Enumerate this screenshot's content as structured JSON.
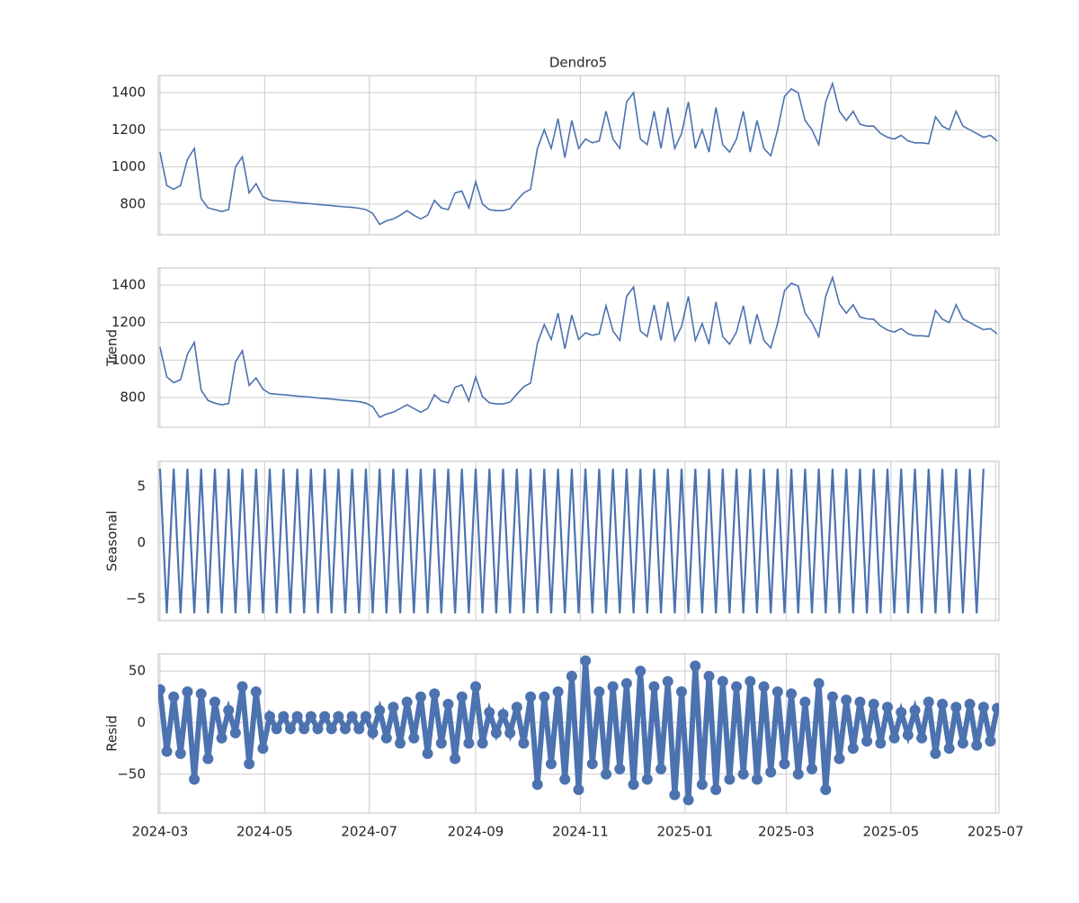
{
  "chart_data": {
    "type": "decomposition",
    "title": "Dendro5",
    "x": [
      "2024-03-01",
      "2024-03-05",
      "2024-03-09",
      "2024-03-13",
      "2024-03-17",
      "2024-03-21",
      "2024-03-25",
      "2024-03-29",
      "2024-04-02",
      "2024-04-06",
      "2024-04-10",
      "2024-04-14",
      "2024-04-18",
      "2024-04-22",
      "2024-04-26",
      "2024-04-30",
      "2024-05-04",
      "2024-05-08",
      "2024-05-12",
      "2024-05-16",
      "2024-05-20",
      "2024-05-24",
      "2024-05-28",
      "2024-06-01",
      "2024-06-05",
      "2024-06-09",
      "2024-06-13",
      "2024-06-17",
      "2024-06-21",
      "2024-06-25",
      "2024-06-29",
      "2024-07-03",
      "2024-07-07",
      "2024-07-11",
      "2024-07-15",
      "2024-07-19",
      "2024-07-23",
      "2024-07-27",
      "2024-07-31",
      "2024-08-04",
      "2024-08-08",
      "2024-08-12",
      "2024-08-16",
      "2024-08-20",
      "2024-08-24",
      "2024-08-28",
      "2024-09-01",
      "2024-09-05",
      "2024-09-09",
      "2024-09-13",
      "2024-09-17",
      "2024-09-21",
      "2024-09-25",
      "2024-09-29",
      "2024-10-03",
      "2024-10-07",
      "2024-10-11",
      "2024-10-15",
      "2024-10-19",
      "2024-10-23",
      "2024-10-27",
      "2024-10-31",
      "2024-11-04",
      "2024-11-08",
      "2024-11-12",
      "2024-11-16",
      "2024-11-20",
      "2024-11-24",
      "2024-11-28",
      "2024-12-02",
      "2024-12-06",
      "2024-12-10",
      "2024-12-14",
      "2024-12-18",
      "2024-12-22",
      "2024-12-26",
      "2024-12-30",
      "2025-01-03",
      "2025-01-07",
      "2025-01-11",
      "2025-01-15",
      "2025-01-19",
      "2025-01-23",
      "2025-01-27",
      "2025-01-31",
      "2025-02-04",
      "2025-02-08",
      "2025-02-12",
      "2025-02-16",
      "2025-02-20",
      "2025-02-24",
      "2025-02-28",
      "2025-03-04",
      "2025-03-08",
      "2025-03-12",
      "2025-03-16",
      "2025-03-20",
      "2025-03-24",
      "2025-03-28",
      "2025-04-01",
      "2025-04-05",
      "2025-04-09",
      "2025-04-13",
      "2025-04-17",
      "2025-04-21",
      "2025-04-25",
      "2025-04-29",
      "2025-05-03",
      "2025-05-07",
      "2025-05-11",
      "2025-05-15",
      "2025-05-19",
      "2025-05-23",
      "2025-05-27",
      "2025-05-31",
      "2025-06-04",
      "2025-06-08",
      "2025-06-12",
      "2025-06-16",
      "2025-06-20",
      "2025-06-24",
      "2025-06-28",
      "2025-07-02"
    ],
    "xlim": [
      "2024-02-29",
      "2025-07-03"
    ],
    "xticks": [
      {
        "value": "2024-03-01",
        "label": "2024-03"
      },
      {
        "value": "2024-05-01",
        "label": "2024-05"
      },
      {
        "value": "2024-07-01",
        "label": "2024-07"
      },
      {
        "value": "2024-09-01",
        "label": "2024-09"
      },
      {
        "value": "2024-11-01",
        "label": "2024-11"
      },
      {
        "value": "2025-01-01",
        "label": "2025-01"
      },
      {
        "value": "2025-03-01",
        "label": "2025-03"
      },
      {
        "value": "2025-05-01",
        "label": "2025-05"
      },
      {
        "value": "2025-07-01",
        "label": "2025-07"
      }
    ],
    "grid": true,
    "color": "#4c72b0",
    "panels": [
      {
        "type": "line",
        "ylim": [
          635,
          1492
        ],
        "yticks": [
          800,
          1000,
          1200,
          1400
        ],
        "values": [
          1080,
          900,
          880,
          900,
          1040,
          1100,
          830,
          780,
          770,
          760,
          770,
          1000,
          1055,
          860,
          910,
          840,
          822,
          818,
          815,
          812,
          808,
          805,
          802,
          798,
          795,
          792,
          788,
          785,
          782,
          778,
          770,
          750,
          690,
          710,
          720,
          740,
          765,
          740,
          720,
          740,
          820,
          780,
          770,
          860,
          870,
          780,
          920,
          800,
          770,
          765,
          765,
          775,
          820,
          860,
          880,
          1100,
          1200,
          1100,
          1260,
          1050,
          1250,
          1100,
          1150,
          1130,
          1140,
          1300,
          1150,
          1100,
          1350,
          1400,
          1150,
          1120,
          1300,
          1100,
          1320,
          1100,
          1180,
          1350,
          1100,
          1200,
          1080,
          1320,
          1120,
          1080,
          1150,
          1300,
          1080,
          1250,
          1100,
          1060,
          1200,
          1380,
          1420,
          1400,
          1250,
          1200,
          1120,
          1350,
          1450,
          1300,
          1250,
          1300,
          1230,
          1220,
          1220,
          1180,
          1160,
          1150,
          1170,
          1140,
          1130,
          1130,
          1125,
          1270,
          1220,
          1200,
          1300,
          1220,
          1200,
          1180,
          1160,
          1170,
          1140
        ]
      },
      {
        "type": "line",
        "ylabel": "Trend",
        "ylim": [
          642,
          1491
        ],
        "yticks": [
          800,
          1000,
          1200,
          1400
        ],
        "values": [
          1070,
          910,
          880,
          895,
          1030,
          1095,
          840,
          785,
          770,
          762,
          768,
          990,
          1050,
          865,
          905,
          845,
          822,
          818,
          815,
          812,
          808,
          805,
          802,
          798,
          795,
          792,
          788,
          785,
          782,
          778,
          770,
          752,
          695,
          712,
          722,
          742,
          762,
          742,
          722,
          742,
          815,
          782,
          772,
          855,
          868,
          782,
          910,
          805,
          772,
          766,
          766,
          776,
          818,
          858,
          878,
          1090,
          1190,
          1110,
          1250,
          1060,
          1240,
          1110,
          1145,
          1132,
          1140,
          1290,
          1155,
          1105,
          1340,
          1390,
          1155,
          1125,
          1295,
          1105,
          1310,
          1105,
          1180,
          1340,
          1105,
          1195,
          1085,
          1310,
          1125,
          1085,
          1150,
          1290,
          1085,
          1245,
          1105,
          1065,
          1195,
          1370,
          1410,
          1395,
          1250,
          1200,
          1125,
          1340,
          1440,
          1300,
          1250,
          1295,
          1230,
          1220,
          1218,
          1182,
          1160,
          1150,
          1168,
          1140,
          1130,
          1130,
          1126,
          1265,
          1218,
          1200,
          1295,
          1220,
          1200,
          1180,
          1162,
          1168,
          1140
        ]
      },
      {
        "type": "line",
        "ylabel": "Seasonal",
        "ylim": [
          -6.94,
          7.26
        ],
        "yticks": [
          {
            "value": -5,
            "label": "−5"
          },
          0,
          5
        ],
        "values": [
          6.6,
          -6.3,
          6.6,
          -6.3,
          6.6,
          -6.3,
          6.6,
          -6.3,
          6.6,
          -6.3,
          6.6,
          -6.3,
          6.6,
          -6.3,
          6.6,
          -6.3,
          6.6,
          -6.3,
          6.6,
          -6.3,
          6.6,
          -6.3,
          6.6,
          -6.3,
          6.6,
          -6.3,
          6.6,
          -6.3,
          6.6,
          -6.3,
          6.6,
          -6.3,
          6.6,
          -6.3,
          6.6,
          -6.3,
          6.6,
          -6.3,
          6.6,
          -6.3,
          6.6,
          -6.3,
          6.6,
          -6.3,
          6.6,
          -6.3,
          6.6,
          -6.3,
          6.6,
          -6.3,
          6.6,
          -6.3,
          6.6,
          -6.3,
          6.6,
          -6.3,
          6.6,
          -6.3,
          6.6,
          -6.3,
          6.6,
          -6.3,
          6.6,
          -6.3,
          6.6,
          -6.3,
          6.6,
          -6.3,
          6.6,
          -6.3,
          6.6,
          -6.3,
          6.6,
          -6.3,
          6.6,
          -6.3,
          6.6,
          -6.3,
          6.6,
          -6.3,
          6.6,
          -6.3,
          6.6,
          -6.3,
          6.6,
          -6.3,
          6.6,
          -6.3,
          6.6,
          -6.3,
          6.6,
          -6.3,
          6.6,
          -6.3,
          6.6,
          -6.3,
          6.6,
          -6.3,
          6.6,
          -6.3,
          6.6,
          -6.3,
          6.6,
          -6.3,
          6.6,
          -6.3,
          6.6,
          -6.3,
          6.6,
          -6.3,
          6.6,
          -6.3,
          6.6,
          -6.3,
          6.6,
          -6.3,
          6.6,
          -6.3,
          6.6,
          -6.3,
          6.6
        ]
      },
      {
        "type": "scatter",
        "ylabel": "Resid",
        "ylim": [
          -87.7,
          66.7
        ],
        "yticks": [
          {
            "value": -50,
            "label": "−50"
          },
          0,
          50
        ],
        "values": [
          32,
          -28,
          25,
          -30,
          30,
          -55,
          28,
          -35,
          20,
          -15,
          12,
          -10,
          35,
          -40,
          30,
          -25,
          6,
          -6,
          6,
          -6,
          6,
          -6,
          6,
          -6,
          6,
          -6,
          6,
          -6,
          6,
          -6,
          6,
          -10,
          12,
          -15,
          15,
          -20,
          20,
          -15,
          25,
          -30,
          28,
          -20,
          18,
          -35,
          25,
          -20,
          35,
          -20,
          10,
          -10,
          8,
          -10,
          15,
          -20,
          25,
          -60,
          25,
          -40,
          30,
          -55,
          45,
          -65,
          60,
          -40,
          30,
          -50,
          35,
          -45,
          38,
          -60,
          50,
          -55,
          35,
          -45,
          40,
          -70,
          30,
          -75,
          55,
          -60,
          45,
          -65,
          40,
          -55,
          35,
          -50,
          40,
          -55,
          35,
          -48,
          30,
          -40,
          28,
          -50,
          20,
          -45,
          38,
          -65,
          25,
          -35,
          22,
          -25,
          20,
          -18,
          18,
          -20,
          15,
          -15,
          10,
          -12,
          12,
          -15,
          20,
          -30,
          18,
          -25,
          15,
          -20,
          18,
          -22,
          15,
          -18,
          14
        ]
      }
    ]
  }
}
